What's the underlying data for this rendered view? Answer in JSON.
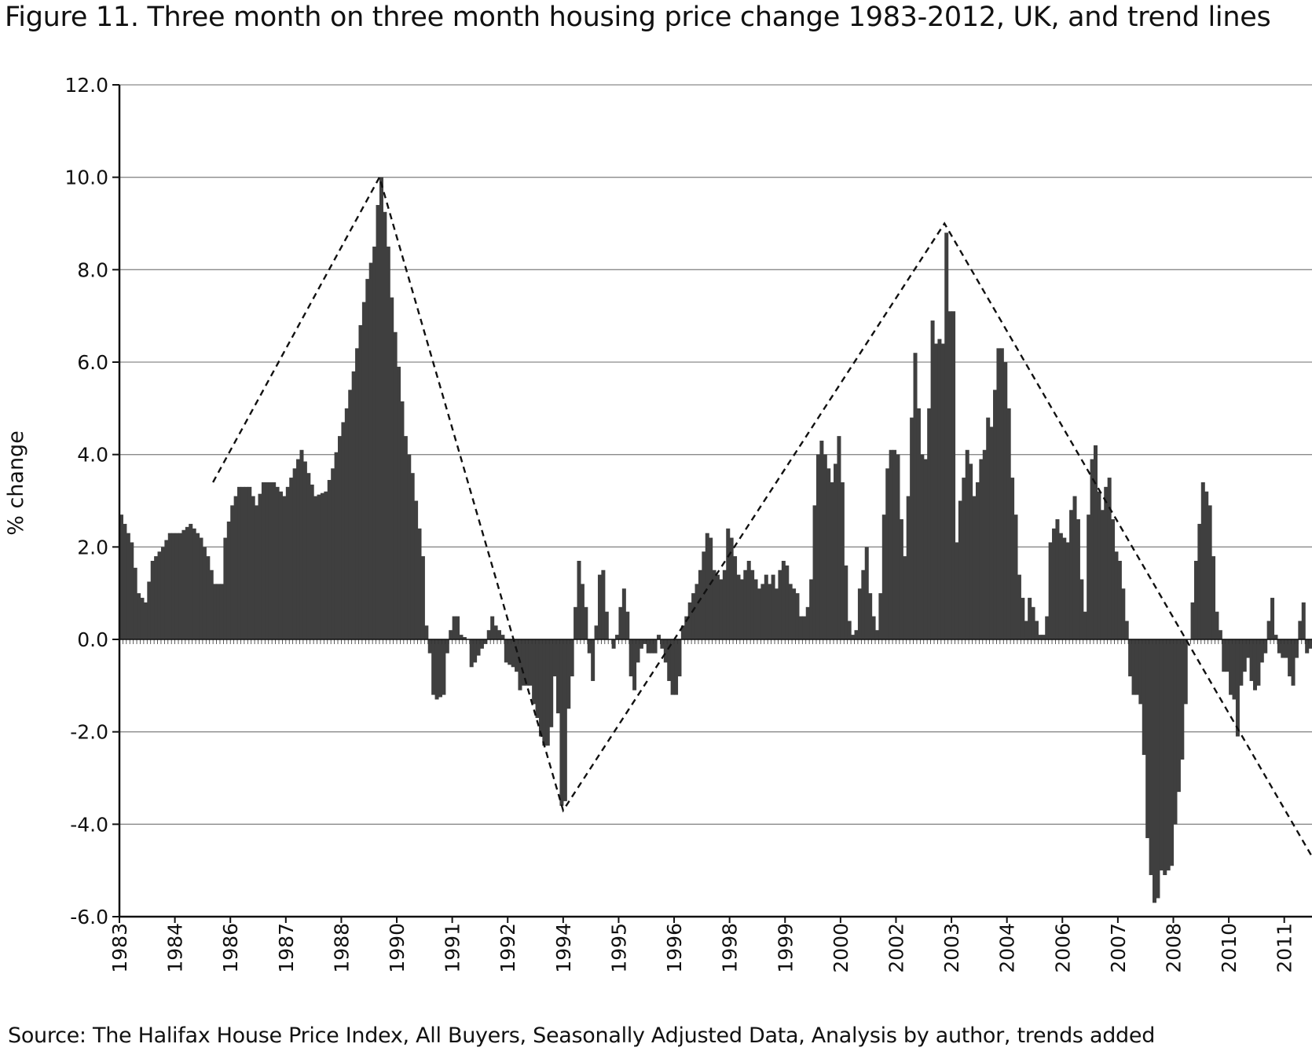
{
  "chart_data": {
    "type": "bar",
    "title": "Figure 11.  Three month on three month housing price change 1983-2012, UK, and trend lines",
    "ylabel": "% change",
    "xlabel": "",
    "source": "Source: The Halifax House Price Index, All Buyers, Seasonally Adjusted Data, Analysis by author, trends added",
    "ylim": [
      -6,
      12
    ],
    "yticks": [
      "12.0",
      "10.0",
      "8.0",
      "6.0",
      "4.0",
      "2.0",
      "0.0",
      "-2.0",
      "-4.0",
      "-6.0"
    ],
    "ytick_values": [
      12,
      10,
      8,
      6,
      4,
      2,
      0,
      -2,
      -4,
      -6
    ],
    "xtick_labels": [
      "1983",
      "1984",
      "1986",
      "1987",
      "1988",
      "1990",
      "1991",
      "1992",
      "1994",
      "1995",
      "1996",
      "1998",
      "1999",
      "2000",
      "2002",
      "2003",
      "2004",
      "2006",
      "2007",
      "2008",
      "2010",
      "2011"
    ],
    "grid": true,
    "bar_color": "#3f3f3f",
    "anchors": [
      [
        0,
        2.7
      ],
      [
        3,
        2.1
      ],
      [
        5,
        1.0
      ],
      [
        7,
        0.8
      ],
      [
        9,
        1.7
      ],
      [
        12,
        2.0
      ],
      [
        14,
        2.3
      ],
      [
        17,
        2.3
      ],
      [
        20,
        2.5
      ],
      [
        23,
        2.2
      ],
      [
        25,
        1.8
      ],
      [
        27,
        1.2
      ],
      [
        29,
        1.2
      ],
      [
        30,
        2.2
      ],
      [
        32,
        2.9
      ],
      [
        34,
        3.3
      ],
      [
        37,
        3.3
      ],
      [
        39,
        2.9
      ],
      [
        41,
        3.4
      ],
      [
        44,
        3.4
      ],
      [
        47,
        3.1
      ],
      [
        49,
        3.5
      ],
      [
        52,
        4.1
      ],
      [
        54,
        3.6
      ],
      [
        56,
        3.1
      ],
      [
        59,
        3.2
      ],
      [
        61,
        3.7
      ],
      [
        63,
        4.4
      ],
      [
        65,
        5.0
      ],
      [
        67,
        5.8
      ],
      [
        69,
        6.8
      ],
      [
        71,
        7.8
      ],
      [
        73,
        8.5
      ],
      [
        74,
        9.4
      ],
      [
        75,
        10.0
      ],
      [
        77,
        8.5
      ],
      [
        78,
        7.4
      ],
      [
        80,
        5.9
      ],
      [
        82,
        4.4
      ],
      [
        84,
        3.6
      ],
      [
        86,
        2.4
      ],
      [
        87,
        1.8
      ],
      [
        88,
        0.3
      ],
      [
        89,
        -0.3
      ],
      [
        90,
        -1.2
      ],
      [
        91,
        -1.3
      ],
      [
        93,
        -1.2
      ],
      [
        94,
        -0.3
      ],
      [
        95,
        0.2
      ],
      [
        96,
        0.5
      ],
      [
        97,
        0.5
      ],
      [
        98,
        0.1
      ],
      [
        100,
        0.0
      ],
      [
        101,
        -0.6
      ],
      [
        102,
        -0.5
      ],
      [
        104,
        -0.2
      ],
      [
        105,
        -0.1
      ],
      [
        106,
        0.2
      ],
      [
        107,
        0.5
      ],
      [
        108,
        0.3
      ],
      [
        110,
        0.1
      ],
      [
        111,
        -0.5
      ],
      [
        113,
        -0.6
      ],
      [
        114,
        -0.7
      ],
      [
        115,
        -1.1
      ],
      [
        116,
        -1.0
      ],
      [
        118,
        -1.0
      ],
      [
        119,
        -1.4
      ],
      [
        120,
        -1.7
      ],
      [
        121,
        -2.1
      ],
      [
        122,
        -2.3
      ],
      [
        123,
        -2.3
      ],
      [
        124,
        -1.9
      ],
      [
        125,
        -0.8
      ],
      [
        126,
        -1.6
      ],
      [
        127,
        -3.6
      ],
      [
        128,
        -3.5
      ],
      [
        129,
        -1.5
      ],
      [
        130,
        -0.8
      ],
      [
        131,
        0.7
      ],
      [
        132,
        1.7
      ],
      [
        133,
        1.2
      ],
      [
        134,
        0.7
      ],
      [
        135,
        -0.3
      ],
      [
        136,
        -0.9
      ],
      [
        137,
        0.3
      ],
      [
        138,
        1.4
      ],
      [
        139,
        1.5
      ],
      [
        140,
        0.6
      ],
      [
        141,
        0.0
      ],
      [
        142,
        -0.2
      ],
      [
        143,
        0.1
      ],
      [
        144,
        0.7
      ],
      [
        145,
        1.1
      ],
      [
        146,
        0.6
      ],
      [
        147,
        -0.8
      ],
      [
        148,
        -1.1
      ],
      [
        149,
        -0.5
      ],
      [
        150,
        -0.2
      ],
      [
        151,
        -0.1
      ],
      [
        152,
        -0.3
      ],
      [
        154,
        -0.3
      ],
      [
        155,
        0.1
      ],
      [
        156,
        -0.2
      ],
      [
        157,
        -0.5
      ],
      [
        158,
        -0.9
      ],
      [
        159,
        -1.2
      ],
      [
        160,
        -1.2
      ],
      [
        161,
        -0.8
      ],
      [
        162,
        0.3
      ],
      [
        163,
        0.5
      ],
      [
        164,
        0.8
      ],
      [
        165,
        1.0
      ],
      [
        166,
        1.2
      ],
      [
        167,
        1.5
      ],
      [
        168,
        1.9
      ],
      [
        169,
        2.3
      ],
      [
        170,
        2.2
      ],
      [
        171,
        1.5
      ],
      [
        172,
        1.4
      ],
      [
        173,
        1.3
      ],
      [
        174,
        1.5
      ],
      [
        175,
        2.4
      ],
      [
        176,
        2.2
      ],
      [
        177,
        1.8
      ],
      [
        178,
        1.4
      ],
      [
        179,
        1.3
      ],
      [
        180,
        1.5
      ],
      [
        181,
        1.7
      ],
      [
        182,
        1.5
      ],
      [
        183,
        1.3
      ],
      [
        184,
        1.1
      ],
      [
        185,
        1.2
      ],
      [
        186,
        1.4
      ],
      [
        187,
        1.2
      ],
      [
        188,
        1.4
      ],
      [
        189,
        1.1
      ],
      [
        190,
        1.5
      ],
      [
        191,
        1.7
      ],
      [
        192,
        1.6
      ],
      [
        193,
        1.2
      ],
      [
        194,
        1.1
      ],
      [
        195,
        1.0
      ],
      [
        196,
        0.5
      ],
      [
        197,
        0.5
      ],
      [
        198,
        0.7
      ],
      [
        199,
        1.3
      ],
      [
        200,
        2.9
      ],
      [
        201,
        4.0
      ],
      [
        202,
        4.3
      ],
      [
        203,
        4.0
      ],
      [
        204,
        3.7
      ],
      [
        205,
        3.4
      ],
      [
        206,
        3.8
      ],
      [
        207,
        4.4
      ],
      [
        208,
        3.4
      ],
      [
        209,
        1.6
      ],
      [
        210,
        0.4
      ],
      [
        211,
        0.1
      ],
      [
        212,
        0.2
      ],
      [
        213,
        1.1
      ],
      [
        214,
        1.5
      ],
      [
        215,
        2.0
      ],
      [
        216,
        1.0
      ],
      [
        217,
        0.5
      ],
      [
        218,
        0.2
      ],
      [
        219,
        1.0
      ],
      [
        220,
        2.7
      ],
      [
        221,
        3.7
      ],
      [
        222,
        4.1
      ],
      [
        223,
        4.1
      ],
      [
        224,
        4.0
      ],
      [
        225,
        2.6
      ],
      [
        226,
        1.8
      ],
      [
        227,
        3.1
      ],
      [
        228,
        4.8
      ],
      [
        229,
        6.2
      ],
      [
        230,
        5.0
      ],
      [
        231,
        4.0
      ],
      [
        232,
        3.9
      ],
      [
        233,
        5.0
      ],
      [
        234,
        6.9
      ],
      [
        235,
        6.4
      ],
      [
        236,
        6.5
      ],
      [
        237,
        6.4
      ],
      [
        238,
        8.8
      ],
      [
        239,
        7.1
      ],
      [
        240,
        7.1
      ],
      [
        241,
        2.1
      ],
      [
        242,
        3.0
      ],
      [
        243,
        3.5
      ],
      [
        244,
        4.1
      ],
      [
        245,
        3.8
      ],
      [
        246,
        3.1
      ],
      [
        247,
        3.4
      ],
      [
        248,
        3.9
      ],
      [
        249,
        4.1
      ],
      [
        250,
        4.8
      ],
      [
        251,
        4.6
      ],
      [
        252,
        5.4
      ],
      [
        253,
        6.3
      ],
      [
        254,
        6.3
      ],
      [
        255,
        6.0
      ],
      [
        256,
        5.0
      ],
      [
        257,
        3.5
      ],
      [
        258,
        2.7
      ],
      [
        259,
        1.4
      ],
      [
        260,
        0.9
      ],
      [
        261,
        0.4
      ],
      [
        262,
        0.9
      ],
      [
        263,
        0.7
      ],
      [
        264,
        0.4
      ],
      [
        265,
        0.1
      ],
      [
        266,
        0.1
      ],
      [
        267,
        0.5
      ],
      [
        268,
        2.1
      ],
      [
        269,
        2.4
      ],
      [
        270,
        2.6
      ],
      [
        271,
        2.3
      ],
      [
        272,
        2.2
      ],
      [
        273,
        2.1
      ],
      [
        274,
        2.8
      ],
      [
        275,
        3.1
      ],
      [
        276,
        2.6
      ],
      [
        277,
        1.3
      ],
      [
        278,
        0.6
      ],
      [
        279,
        2.7
      ],
      [
        280,
        3.9
      ],
      [
        281,
        4.2
      ],
      [
        282,
        3.2
      ],
      [
        283,
        2.8
      ],
      [
        284,
        3.3
      ],
      [
        285,
        3.5
      ],
      [
        286,
        2.6
      ],
      [
        287,
        1.9
      ],
      [
        288,
        1.7
      ],
      [
        289,
        1.1
      ],
      [
        290,
        0.4
      ],
      [
        291,
        -0.8
      ],
      [
        292,
        -1.2
      ],
      [
        293,
        -1.2
      ],
      [
        294,
        -1.4
      ],
      [
        295,
        -2.5
      ],
      [
        296,
        -4.3
      ],
      [
        297,
        -5.1
      ],
      [
        298,
        -5.7
      ],
      [
        299,
        -5.6
      ],
      [
        300,
        -5.0
      ],
      [
        301,
        -5.1
      ],
      [
        302,
        -5.0
      ],
      [
        303,
        -4.9
      ],
      [
        304,
        -4.0
      ],
      [
        305,
        -3.3
      ],
      [
        306,
        -2.6
      ],
      [
        307,
        -1.4
      ],
      [
        308,
        0.0
      ],
      [
        309,
        0.8
      ],
      [
        310,
        1.7
      ],
      [
        311,
        2.5
      ],
      [
        312,
        3.4
      ],
      [
        313,
        3.2
      ],
      [
        314,
        2.9
      ],
      [
        315,
        1.8
      ],
      [
        316,
        0.6
      ],
      [
        317,
        0.2
      ],
      [
        318,
        -0.7
      ],
      [
        319,
        -0.7
      ],
      [
        320,
        -1.2
      ],
      [
        321,
        -1.3
      ],
      [
        322,
        -2.1
      ],
      [
        323,
        -1.0
      ],
      [
        324,
        -0.7
      ],
      [
        325,
        -0.4
      ],
      [
        326,
        -0.9
      ],
      [
        327,
        -1.1
      ],
      [
        328,
        -1.0
      ],
      [
        329,
        -0.5
      ],
      [
        330,
        -0.3
      ],
      [
        331,
        0.4
      ],
      [
        332,
        0.9
      ],
      [
        333,
        0.1
      ],
      [
        334,
        -0.3
      ],
      [
        335,
        -0.4
      ],
      [
        336,
        -0.4
      ],
      [
        337,
        -0.8
      ],
      [
        338,
        -1.0
      ],
      [
        339,
        -0.4
      ],
      [
        340,
        0.4
      ],
      [
        341,
        0.8
      ],
      [
        342,
        -0.3
      ],
      [
        343,
        -0.2
      ]
    ],
    "n_months": 344,
    "trend_lines": [
      {
        "x": [
          27,
          75,
          128,
          238,
          344
        ],
        "y": [
          3.4,
          10.0,
          -3.7,
          9.0,
          -4.7
        ]
      }
    ]
  }
}
